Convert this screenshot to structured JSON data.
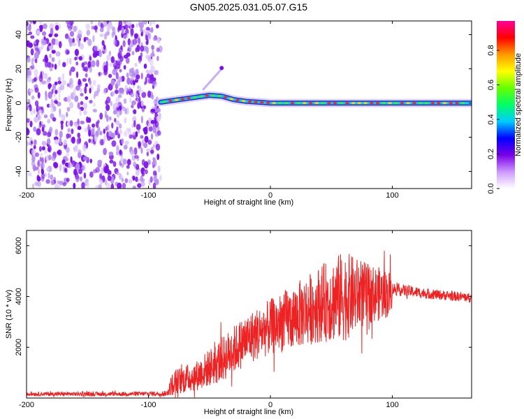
{
  "title": "GN05.2025.031.05.07.G15",
  "chart_data": [
    {
      "type": "heatmap",
      "xlabel": "Height of straight line (km)",
      "ylabel": "Frequency (Hz)",
      "xlim": [
        -200,
        165
      ],
      "ylim": [
        -50,
        48
      ],
      "xticks": [
        -200,
        -100,
        0,
        100
      ],
      "yticks": [
        -40,
        -20,
        0,
        20,
        40
      ],
      "noise_region_x": [
        -200,
        -90
      ],
      "ridge": [
        {
          "x": -90,
          "y": 0.5
        },
        {
          "x": -80,
          "y": 1.5
        },
        {
          "x": -70,
          "y": 2.5
        },
        {
          "x": -60,
          "y": 3.5
        },
        {
          "x": -50,
          "y": 4.5
        },
        {
          "x": -40,
          "y": 4.0
        },
        {
          "x": -30,
          "y": 2.0
        },
        {
          "x": -20,
          "y": 1.0
        },
        {
          "x": -10,
          "y": 0.5
        },
        {
          "x": 0,
          "y": 0.0
        },
        {
          "x": 50,
          "y": 0.0
        },
        {
          "x": 100,
          "y": 0.0
        },
        {
          "x": 165,
          "y": 0.0
        }
      ],
      "colorbar": {
        "label": "Normalized spectral amplitude",
        "range": [
          0,
          0.97
        ],
        "ticks": [
          0.0,
          0.2,
          0.4,
          0.6,
          0.8
        ],
        "colors": [
          "#ffffff",
          "#cc99ff",
          "#7a00e6",
          "#0000ff",
          "#00ccff",
          "#00ff66",
          "#66ff00",
          "#ffff00",
          "#ff9900",
          "#ff0000",
          "#ff0099"
        ]
      }
    },
    {
      "type": "line",
      "xlabel": "Height of straight line (km)",
      "ylabel": "SNR (10 * v/v)",
      "xlim": [
        -200,
        165
      ],
      "ylim": [
        0,
        6600
      ],
      "xticks": [
        -200,
        -100,
        0,
        100
      ],
      "yticks": [
        2000,
        4000,
        6000
      ],
      "color": "#ee2222",
      "envelope": [
        {
          "x": -200,
          "mean": 160,
          "amp": 80
        },
        {
          "x": -120,
          "mean": 160,
          "amp": 80
        },
        {
          "x": -85,
          "mean": 180,
          "amp": 100
        },
        {
          "x": -80,
          "mean": 600,
          "amp": 500
        },
        {
          "x": -60,
          "mean": 900,
          "amp": 600
        },
        {
          "x": -40,
          "mean": 1500,
          "amp": 900
        },
        {
          "x": -20,
          "mean": 2300,
          "amp": 1000
        },
        {
          "x": 0,
          "mean": 2800,
          "amp": 1100
        },
        {
          "x": 20,
          "mean": 3200,
          "amp": 1300
        },
        {
          "x": 40,
          "mean": 3700,
          "amp": 1500
        },
        {
          "x": 60,
          "mean": 4000,
          "amp": 1800
        },
        {
          "x": 80,
          "mean": 4100,
          "amp": 1200
        },
        {
          "x": 99,
          "mean": 4100,
          "amp": 900
        },
        {
          "x": 100,
          "mean": 4300,
          "amp": 250
        },
        {
          "x": 130,
          "mean": 4100,
          "amp": 200
        },
        {
          "x": 165,
          "mean": 3950,
          "amp": 180
        }
      ]
    }
  ]
}
